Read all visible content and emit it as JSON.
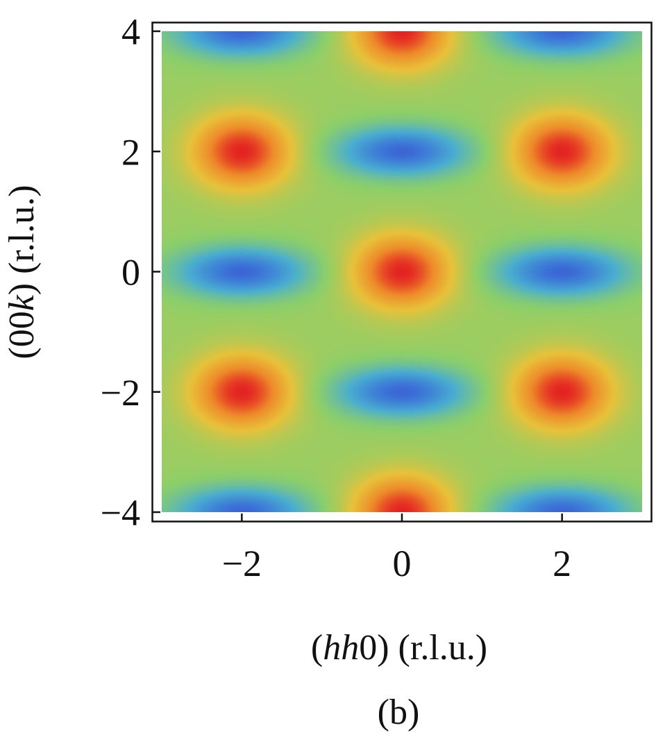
{
  "panel_label": "(b)",
  "chart_data": {
    "type": "heatmap",
    "xlabel": {
      "prefix": "(",
      "italic": "hh",
      "suffix": "0) (r.l.u.)"
    },
    "ylabel": {
      "prefix": "(00",
      "italic": "k",
      "suffix": ") (r.l.u.)"
    },
    "xlim": [
      -3,
      3
    ],
    "ylim": [
      -4,
      4
    ],
    "x_ticks": [
      -2,
      0,
      2
    ],
    "x_tick_labels": [
      "−2",
      "0",
      "2"
    ],
    "y_ticks": [
      -4,
      -2,
      0,
      2,
      4
    ],
    "y_tick_labels": [
      "−4",
      "−2",
      "0",
      "2",
      "4"
    ],
    "colormap": [
      "#7a1f8c",
      "#3a2fc8",
      "#3c78d8",
      "#4aaed0",
      "#8ccf6a",
      "#e8c23a",
      "#ee8a2a",
      "#e32222"
    ],
    "peaks": [
      {
        "h": 0,
        "k": 4
      },
      {
        "h": -2,
        "k": 2
      },
      {
        "h": 2,
        "k": 2
      },
      {
        "h": 0,
        "k": 0
      },
      {
        "h": -2,
        "k": -2
      },
      {
        "h": 2,
        "k": -2
      },
      {
        "h": 0,
        "k": -4
      }
    ],
    "minima": [
      {
        "h": -2,
        "k": 4
      },
      {
        "h": 2,
        "k": 4
      },
      {
        "h": 0,
        "k": 2
      },
      {
        "h": -2,
        "k": 0
      },
      {
        "h": 2,
        "k": 0
      },
      {
        "h": 0,
        "k": -2
      },
      {
        "h": -2,
        "k": -4
      },
      {
        "h": 2,
        "k": -4
      }
    ]
  }
}
